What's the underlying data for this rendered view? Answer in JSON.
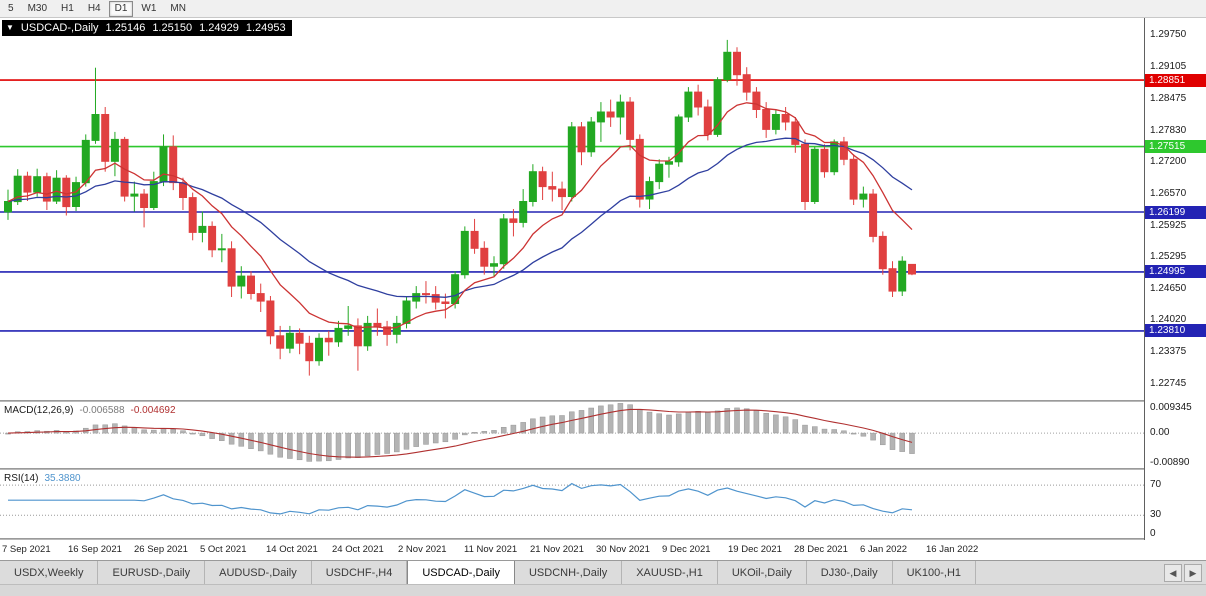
{
  "toolbar": {
    "timeframes": [
      "5",
      "M30",
      "H1",
      "H4",
      "D1",
      "W1",
      "MN"
    ],
    "active": "D1"
  },
  "chart": {
    "header": {
      "dropdown_glyph": "▼",
      "symbol": "USDCAD-,Daily",
      "open": "1.25146",
      "high": "1.25150",
      "low": "1.24929",
      "close": "1.24953"
    },
    "price_axis_ticks": [
      "1.29750",
      "1.29105",
      "1.28475",
      "1.27830",
      "1.27200",
      "1.26570",
      "1.25925",
      "1.25295",
      "1.24650",
      "1.24020",
      "1.23375",
      "1.22745"
    ],
    "levels": [
      {
        "price": 1.28851,
        "label": "1.28851",
        "color": "#e00000"
      },
      {
        "price": 1.27515,
        "label": "1.27515",
        "color": "#2ec82e"
      },
      {
        "price": 1.26199,
        "label": "1.26199",
        "color": "#2323b4"
      },
      {
        "price": 1.24995,
        "label": "1.24995",
        "color": "#2323b4"
      },
      {
        "price": 1.2381,
        "label": "1.23810",
        "color": "#2323b4"
      }
    ],
    "price_range": {
      "max": 1.301,
      "min": 1.2242
    },
    "colors": {
      "candle_up": "#22a822",
      "candle_down": "#e04040",
      "ma_fast": "#cc3333",
      "ma_slow": "#2f3f9f",
      "macd_bar": "#b4b4b4",
      "macd_signal": "#b03030",
      "rsi_line": "#4f94cd"
    }
  },
  "chart_data": {
    "type": "candlestick",
    "symbol": "USDCAD",
    "timeframe": "Daily",
    "candles": [
      [
        1.262,
        1.2665,
        1.2604,
        1.2641
      ],
      [
        1.2641,
        1.2706,
        1.2634,
        1.2692
      ],
      [
        1.2692,
        1.2701,
        1.2642,
        1.266
      ],
      [
        1.266,
        1.2707,
        1.2651,
        1.2691
      ],
      [
        1.2691,
        1.2699,
        1.2624,
        1.2642
      ],
      [
        1.2642,
        1.2704,
        1.2636,
        1.2688
      ],
      [
        1.2688,
        1.2694,
        1.2613,
        1.2631
      ],
      [
        1.2631,
        1.2691,
        1.2622,
        1.2679
      ],
      [
        1.2679,
        1.2776,
        1.2671,
        1.2764
      ],
      [
        1.2764,
        1.291,
        1.2757,
        1.2816
      ],
      [
        1.2816,
        1.2831,
        1.2701,
        1.2722
      ],
      [
        1.2722,
        1.2781,
        1.2692,
        1.2766
      ],
      [
        1.2766,
        1.2771,
        1.2641,
        1.2652
      ],
      [
        1.2652,
        1.2681,
        1.2621,
        1.2656
      ],
      [
        1.2656,
        1.2666,
        1.2589,
        1.2629
      ],
      [
        1.2629,
        1.2701,
        1.2624,
        1.2681
      ],
      [
        1.2681,
        1.2776,
        1.2672,
        1.2751
      ],
      [
        1.2751,
        1.2774,
        1.2664,
        1.2679
      ],
      [
        1.2679,
        1.2689,
        1.2624,
        1.2649
      ],
      [
        1.2649,
        1.2659,
        1.2563,
        1.2579
      ],
      [
        1.2579,
        1.2621,
        1.2559,
        1.2591
      ],
      [
        1.2591,
        1.2601,
        1.2529,
        1.2544
      ],
      [
        1.2544,
        1.2576,
        1.2519,
        1.2546
      ],
      [
        1.2546,
        1.2561,
        1.2449,
        1.2471
      ],
      [
        1.2471,
        1.2511,
        1.2446,
        1.2491
      ],
      [
        1.2491,
        1.2501,
        1.2444,
        1.2456
      ],
      [
        1.2456,
        1.2476,
        1.2419,
        1.2441
      ],
      [
        1.2441,
        1.2451,
        1.2354,
        1.2371
      ],
      [
        1.2371,
        1.2391,
        1.2324,
        1.2346
      ],
      [
        1.2346,
        1.2391,
        1.2336,
        1.2376
      ],
      [
        1.2376,
        1.2386,
        1.2334,
        1.2356
      ],
      [
        1.2356,
        1.2371,
        1.2291,
        1.2321
      ],
      [
        1.2321,
        1.2376,
        1.2311,
        1.2366
      ],
      [
        1.2366,
        1.2381,
        1.2331,
        1.2359
      ],
      [
        1.2359,
        1.2401,
        1.2349,
        1.2386
      ],
      [
        1.2386,
        1.2431,
        1.2371,
        1.2391
      ],
      [
        1.2391,
        1.2406,
        1.2301,
        1.2351
      ],
      [
        1.2351,
        1.2411,
        1.2341,
        1.2396
      ],
      [
        1.2396,
        1.2426,
        1.2371,
        1.2389
      ],
      [
        1.2389,
        1.2401,
        1.2351,
        1.2374
      ],
      [
        1.2374,
        1.2411,
        1.2356,
        1.2396
      ],
      [
        1.2396,
        1.2451,
        1.2386,
        1.2441
      ],
      [
        1.2441,
        1.2471,
        1.2426,
        1.2456
      ],
      [
        1.2456,
        1.2481,
        1.2436,
        1.2454
      ],
      [
        1.2454,
        1.2471,
        1.2424,
        1.2439
      ],
      [
        1.2439,
        1.2456,
        1.2406,
        1.2436
      ],
      [
        1.2436,
        1.2501,
        1.2426,
        1.2494
      ],
      [
        1.2494,
        1.2591,
        1.2486,
        1.2581
      ],
      [
        1.2581,
        1.2606,
        1.2536,
        1.2547
      ],
      [
        1.2547,
        1.2561,
        1.2494,
        1.2511
      ],
      [
        1.2511,
        1.2531,
        1.2491,
        1.2516
      ],
      [
        1.2516,
        1.2616,
        1.2506,
        1.2606
      ],
      [
        1.2606,
        1.2626,
        1.2571,
        1.2599
      ],
      [
        1.2599,
        1.2666,
        1.2589,
        1.2641
      ],
      [
        1.2641,
        1.2716,
        1.2631,
        1.2701
      ],
      [
        1.2701,
        1.2711,
        1.2644,
        1.2671
      ],
      [
        1.2671,
        1.2701,
        1.2641,
        1.2666
      ],
      [
        1.2666,
        1.2681,
        1.2624,
        1.2651
      ],
      [
        1.2651,
        1.2801,
        1.2641,
        1.2791
      ],
      [
        1.2791,
        1.2801,
        1.2714,
        1.2741
      ],
      [
        1.2741,
        1.2811,
        1.2731,
        1.2801
      ],
      [
        1.2801,
        1.2841,
        1.2761,
        1.2821
      ],
      [
        1.2821,
        1.2846,
        1.2791,
        1.2811
      ],
      [
        1.2811,
        1.2856,
        1.2776,
        1.2841
      ],
      [
        1.2841,
        1.2851,
        1.2744,
        1.2766
      ],
      [
        1.2766,
        1.2776,
        1.2629,
        1.2646
      ],
      [
        1.2646,
        1.2691,
        1.2626,
        1.2681
      ],
      [
        1.2681,
        1.2726,
        1.2666,
        1.2716
      ],
      [
        1.2716,
        1.2731,
        1.2689,
        1.2721
      ],
      [
        1.2721,
        1.2816,
        1.2711,
        1.2811
      ],
      [
        1.2811,
        1.2871,
        1.2801,
        1.2861
      ],
      [
        1.2861,
        1.2876,
        1.2814,
        1.2831
      ],
      [
        1.2831,
        1.2846,
        1.2764,
        1.2776
      ],
      [
        1.2776,
        1.2891,
        1.2771,
        1.2886
      ],
      [
        1.2886,
        1.2966,
        1.2881,
        1.2941
      ],
      [
        1.2941,
        1.2951,
        1.2874,
        1.2896
      ],
      [
        1.2896,
        1.2911,
        1.2844,
        1.2861
      ],
      [
        1.2861,
        1.2871,
        1.2809,
        1.2826
      ],
      [
        1.2826,
        1.2841,
        1.2769,
        1.2786
      ],
      [
        1.2786,
        1.2826,
        1.2776,
        1.2816
      ],
      [
        1.2816,
        1.2831,
        1.2784,
        1.2801
      ],
      [
        1.2801,
        1.2811,
        1.2739,
        1.2756
      ],
      [
        1.2756,
        1.2766,
        1.2624,
        1.2641
      ],
      [
        1.2641,
        1.2751,
        1.2636,
        1.2746
      ],
      [
        1.2746,
        1.2756,
        1.2689,
        1.2701
      ],
      [
        1.2701,
        1.2766,
        1.2694,
        1.2761
      ],
      [
        1.2761,
        1.2771,
        1.2714,
        1.2726
      ],
      [
        1.2726,
        1.2736,
        1.2634,
        1.2646
      ],
      [
        1.2646,
        1.2671,
        1.2629,
        1.2656
      ],
      [
        1.2656,
        1.2666,
        1.2559,
        1.2571
      ],
      [
        1.2571,
        1.2581,
        1.2494,
        1.2506
      ],
      [
        1.2506,
        1.2521,
        1.2449,
        1.2461
      ],
      [
        1.2461,
        1.2531,
        1.2451,
        1.2521
      ],
      [
        1.25146,
        1.2515,
        1.24929,
        1.24953
      ]
    ],
    "date_labels": [
      "7 Sep 2021",
      "16 Sep 2021",
      "26 Sep 2021",
      "5 Oct 2021",
      "14 Oct 2021",
      "24 Oct 2021",
      "2 Nov 2021",
      "11 Nov 2021",
      "21 Nov 2021",
      "30 Nov 2021",
      "9 Dec 2021",
      "19 Dec 2021",
      "28 Dec 2021",
      "6 Jan 2022",
      "16 Jan 2022"
    ],
    "macd": {
      "label": "MACD(12,26,9)",
      "main_value": "-0.006588",
      "signal_value": "-0.004692",
      "params": [
        12,
        26,
        9
      ],
      "axis_labels": [
        "0.009345",
        "0.00",
        "-0.00890"
      ],
      "axis_values": [
        0.009345,
        0,
        -0.0089
      ]
    },
    "rsi": {
      "label": "RSI(14)",
      "value": "35.3880",
      "period": 14,
      "axis_labels": [
        "70",
        "30",
        "0"
      ],
      "axis_values": [
        70,
        30,
        0
      ],
      "guide_levels": [
        70,
        30
      ]
    }
  },
  "tabs": {
    "items": [
      "USDX,Weekly",
      "EURUSD-,Daily",
      "AUDUSD-,Daily",
      "USDCHF-,H4",
      "USDCAD-,Daily",
      "USDCNH-,Daily",
      "XAUUSD-,H1",
      "UKOil-,Daily",
      "DJ30-,Daily",
      "UK100-,H1"
    ],
    "active_index": 4,
    "scroll_left": "◀",
    "scroll_right": "▶"
  }
}
